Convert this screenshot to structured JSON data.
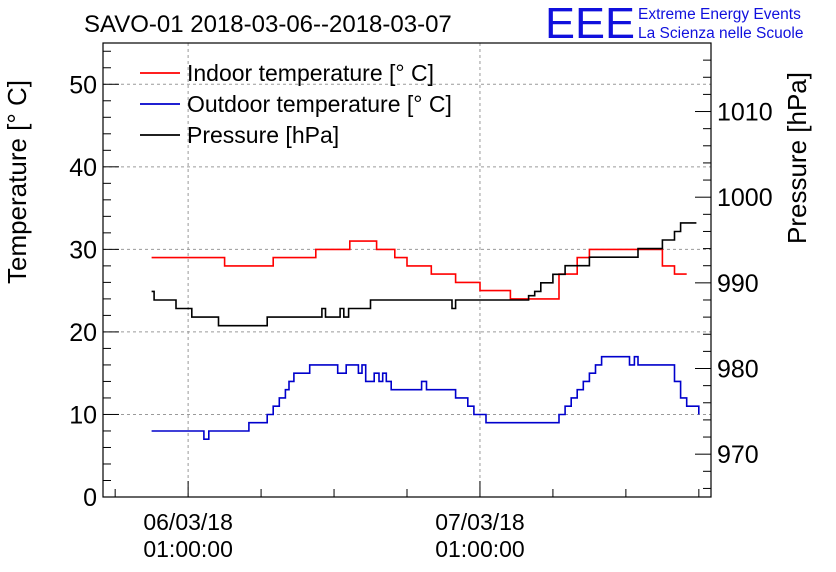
{
  "branding": {
    "logo_text": "EEE",
    "line1": "Extreme Energy Events",
    "line2": "La Scienza nelle Scuole",
    "color": "#1010dd"
  },
  "chart_data": {
    "type": "line",
    "title": "SAVO-01 2018-03-06--2018-03-07",
    "ylabel": "Temperature [° C]",
    "y2label": "Pressure [hPa]",
    "xlabel": "",
    "ylim": [
      0,
      55
    ],
    "y2lim": [
      965,
      1018
    ],
    "yticks": [
      0,
      10,
      20,
      30,
      40,
      50
    ],
    "y2ticks": [
      970,
      980,
      990,
      1000,
      1010
    ],
    "xlim": [
      -7,
      43
    ],
    "xticks": [
      {
        "x": 0,
        "line1": "06/03/18",
        "line2": "01:00:00"
      },
      {
        "x": 24,
        "line1": "07/03/18",
        "line2": "01:00:00"
      }
    ],
    "grid": true,
    "legend_position": "top-left",
    "series": [
      {
        "name": "Indoor temperature [° C]",
        "axis": "left",
        "color": "#ff0000",
        "points": [
          [
            -3,
            29
          ],
          [
            2.5,
            29
          ],
          [
            3,
            28
          ],
          [
            6.5,
            28
          ],
          [
            7,
            29
          ],
          [
            10,
            29
          ],
          [
            10.5,
            30
          ],
          [
            13,
            30
          ],
          [
            13.3,
            31
          ],
          [
            15,
            31
          ],
          [
            15.5,
            30
          ],
          [
            16.5,
            30
          ],
          [
            17,
            29
          ],
          [
            18,
            28
          ],
          [
            19.5,
            28
          ],
          [
            20,
            27
          ],
          [
            22,
            26
          ],
          [
            24,
            25
          ],
          [
            25,
            25
          ],
          [
            26.5,
            24
          ],
          [
            28,
            24
          ],
          [
            30.5,
            27
          ],
          [
            32,
            29
          ],
          [
            33,
            30
          ],
          [
            38,
            30
          ],
          [
            39,
            28
          ],
          [
            40,
            27
          ],
          [
            41,
            27
          ]
        ]
      },
      {
        "name": "Outdoor temperature [° C]",
        "axis": "left",
        "color": "#0000cc",
        "points": [
          [
            -3,
            8
          ],
          [
            1,
            8
          ],
          [
            1.3,
            7
          ],
          [
            1.7,
            8
          ],
          [
            4.5,
            8
          ],
          [
            5,
            9
          ],
          [
            6.5,
            10
          ],
          [
            7,
            11
          ],
          [
            7.5,
            12
          ],
          [
            8,
            13
          ],
          [
            8.3,
            14
          ],
          [
            8.7,
            15
          ],
          [
            9.5,
            15
          ],
          [
            10,
            16
          ],
          [
            12,
            16
          ],
          [
            12.3,
            15
          ],
          [
            12.7,
            15
          ],
          [
            13,
            16
          ],
          [
            13.7,
            16
          ],
          [
            14,
            15
          ],
          [
            14.3,
            16
          ],
          [
            14.6,
            14
          ],
          [
            15,
            14
          ],
          [
            15.3,
            15
          ],
          [
            15.7,
            14
          ],
          [
            16,
            15
          ],
          [
            16.3,
            14
          ],
          [
            16.7,
            13
          ],
          [
            19,
            13
          ],
          [
            19.2,
            14
          ],
          [
            19.6,
            13
          ],
          [
            21.5,
            13
          ],
          [
            22,
            12
          ],
          [
            23,
            11
          ],
          [
            23.5,
            10
          ],
          [
            24,
            10
          ],
          [
            24.5,
            9
          ],
          [
            27,
            9
          ],
          [
            30,
            9
          ],
          [
            30.5,
            10
          ],
          [
            31,
            11
          ],
          [
            31.5,
            12
          ],
          [
            32,
            13
          ],
          [
            32.5,
            14
          ],
          [
            33,
            15
          ],
          [
            33.5,
            16
          ],
          [
            34,
            17
          ],
          [
            36,
            17
          ],
          [
            36.3,
            16
          ],
          [
            36.7,
            17
          ],
          [
            37,
            16
          ],
          [
            39,
            16
          ],
          [
            40,
            14
          ],
          [
            40.5,
            12
          ],
          [
            41,
            11
          ],
          [
            41.8,
            11
          ],
          [
            42,
            10
          ]
        ]
      },
      {
        "name": "Pressure [hPa]",
        "axis": "right",
        "color": "#000000",
        "points": [
          [
            -3,
            989
          ],
          [
            -2.8,
            988
          ],
          [
            -1.5,
            988
          ],
          [
            -1,
            987
          ],
          [
            0,
            987
          ],
          [
            0.3,
            986
          ],
          [
            2,
            986
          ],
          [
            2.5,
            985
          ],
          [
            6,
            985
          ],
          [
            6.5,
            986
          ],
          [
            10.5,
            986
          ],
          [
            11,
            987
          ],
          [
            11.3,
            986
          ],
          [
            12.2,
            986
          ],
          [
            12.5,
            987
          ],
          [
            12.8,
            986
          ],
          [
            13.2,
            987
          ],
          [
            14.5,
            987
          ],
          [
            15,
            988
          ],
          [
            21.5,
            988
          ],
          [
            21.7,
            987
          ],
          [
            22,
            988
          ],
          [
            27,
            988
          ],
          [
            28,
            988.5
          ],
          [
            28.5,
            989
          ],
          [
            29,
            990
          ],
          [
            30,
            991
          ],
          [
            31,
            992
          ],
          [
            32,
            992
          ],
          [
            33,
            993
          ],
          [
            36.5,
            993
          ],
          [
            37,
            994
          ],
          [
            38.5,
            994
          ],
          [
            39,
            995
          ],
          [
            40,
            996
          ],
          [
            40.5,
            997
          ],
          [
            41.8,
            997
          ]
        ]
      }
    ]
  }
}
